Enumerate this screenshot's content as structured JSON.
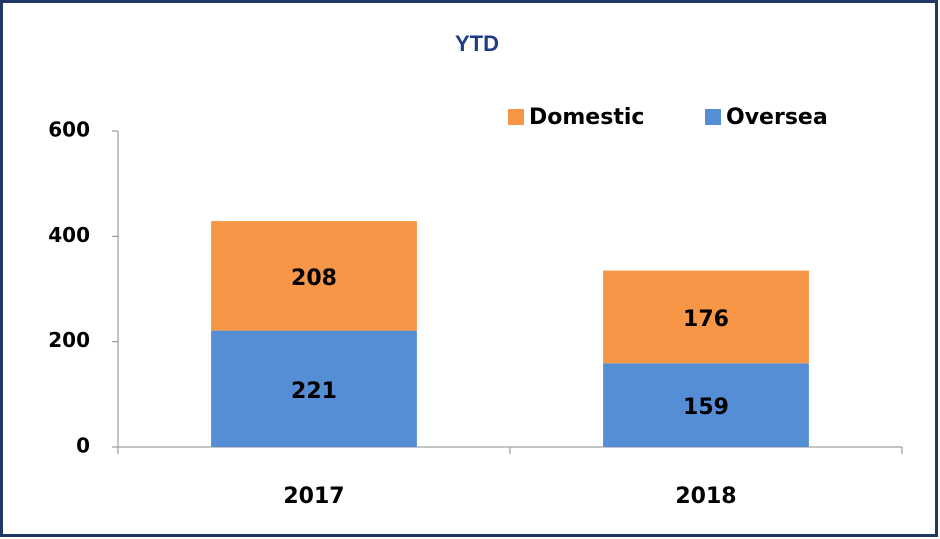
{
  "chart_data": {
    "type": "stacked_bar",
    "title": "YTD",
    "categories": [
      "2017",
      "2018"
    ],
    "series": [
      {
        "name": "Oversea",
        "color": "#558ed5",
        "values": [
          221,
          159
        ]
      },
      {
        "name": "Domestic",
        "color": "#f79646",
        "values": [
          208,
          176
        ]
      }
    ],
    "ylim": [
      0,
      600
    ],
    "yticks": [
      0,
      200,
      400,
      600
    ],
    "grid": false,
    "legend": "top-right"
  }
}
